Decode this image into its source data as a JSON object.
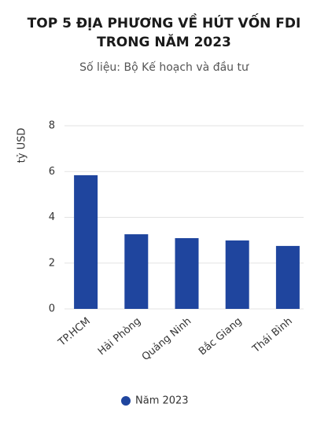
{
  "chart_data": {
    "type": "bar",
    "title": "TOP 5 ĐỊA PHƯƠNG VỀ HÚT VỐN FDI TRONG NĂM 2023",
    "subtitle": "Số liệu: Bộ Kế hoạch và đầu tư",
    "y_label": "tỷ USD",
    "categories": [
      "TP.HCM",
      "Hải Phòng",
      "Quảng Ninh",
      "Bắc Giang",
      "Thái Bình"
    ],
    "series": [
      {
        "name": "Năm 2023",
        "color": "#1f459e",
        "values": [
          5.84,
          3.26,
          3.09,
          2.99,
          2.75
        ]
      }
    ],
    "ylim": [
      0,
      8
    ],
    "yticks": [
      0,
      2,
      4,
      6,
      8
    ],
    "grid": true,
    "legend": "bottom"
  }
}
